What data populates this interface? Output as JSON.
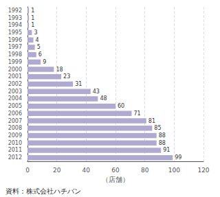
{
  "chart_data": {
    "type": "bar",
    "orientation": "horizontal",
    "categories": [
      "1992",
      "1993",
      "1994",
      "1995",
      "1996",
      "1997",
      "1998",
      "1999",
      "2000",
      "2001",
      "2002",
      "2003",
      "2004",
      "2005",
      "2006",
      "2007",
      "2008",
      "2009",
      "2010",
      "2011",
      "2012"
    ],
    "values": [
      1,
      1,
      1,
      3,
      4,
      5,
      6,
      9,
      18,
      23,
      31,
      43,
      48,
      60,
      71,
      81,
      85,
      88,
      88,
      91,
      99
    ],
    "color": "#b0aad0",
    "xlabel": "（店舗）",
    "xlim": [
      0,
      120
    ],
    "xticks": [
      0,
      20,
      40,
      60,
      80,
      100,
      120
    ],
    "annotations": [
      "資料：株式会社ハチバン"
    ],
    "grid": true,
    "data_labels": true
  }
}
